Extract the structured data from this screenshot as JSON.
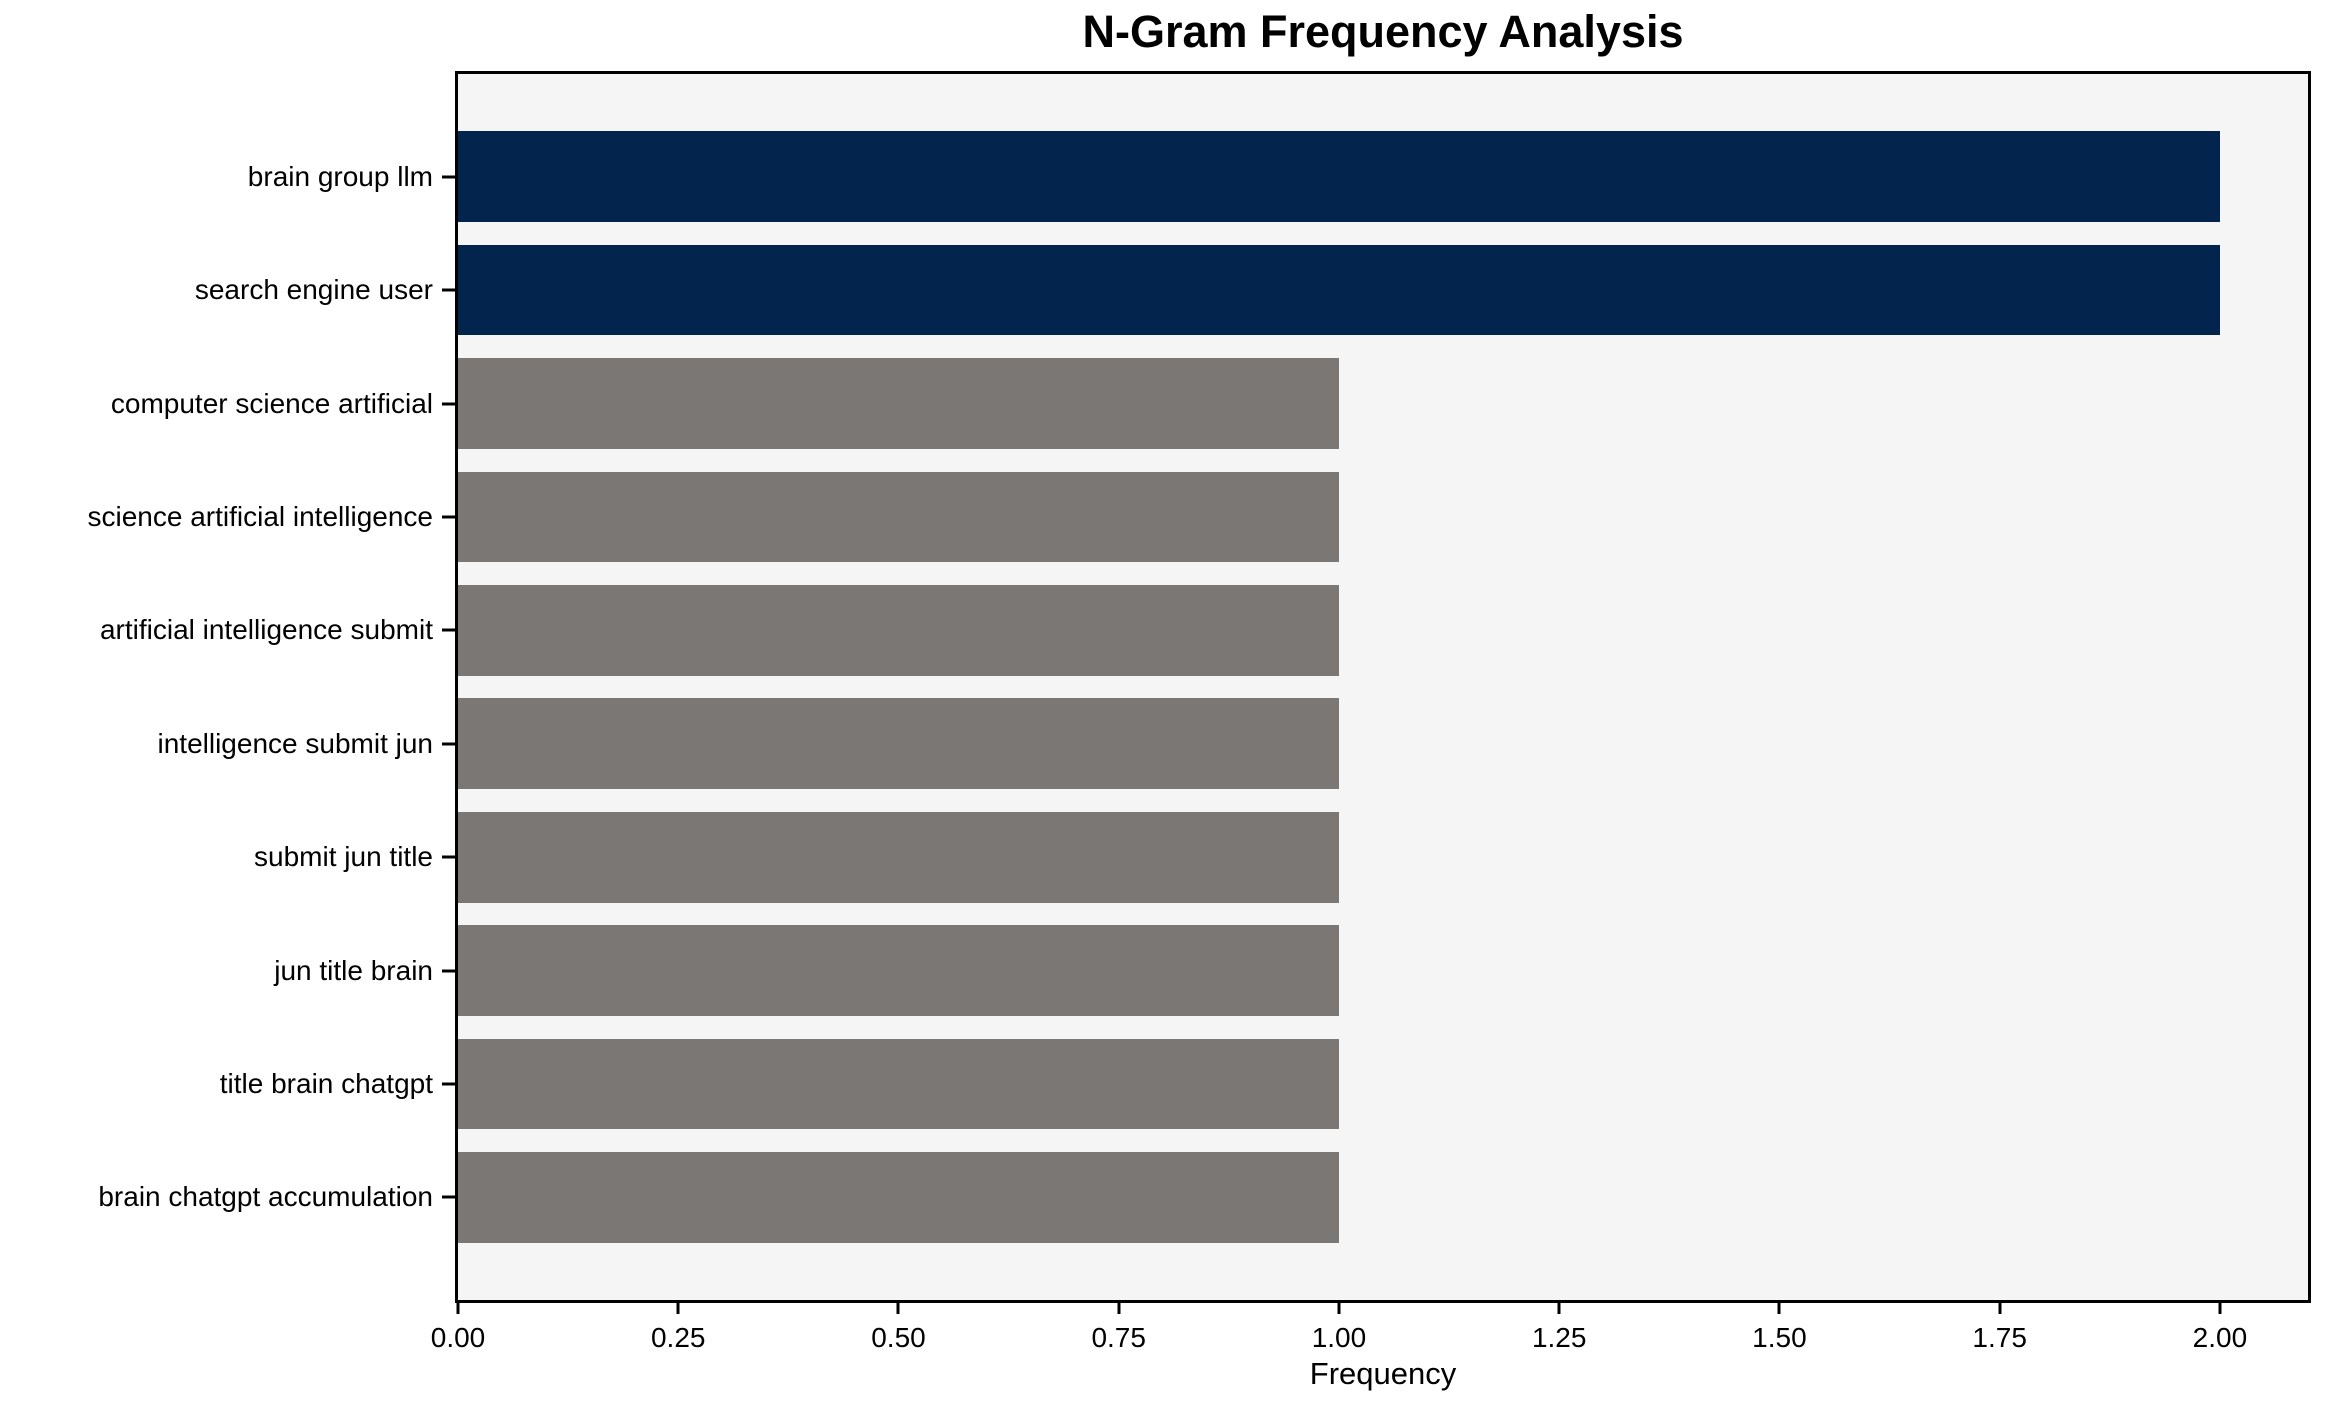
{
  "chart_data": {
    "type": "bar",
    "orientation": "horizontal",
    "title": "N-Gram Frequency Analysis",
    "xlabel": "Frequency",
    "ylabel": "",
    "categories": [
      "brain group llm",
      "search engine user",
      "computer science artificial",
      "science artificial intelligence",
      "artificial intelligence submit",
      "intelligence submit jun",
      "submit jun title",
      "jun title brain",
      "title brain chatgpt",
      "brain chatgpt accumulation"
    ],
    "values": [
      2,
      2,
      1,
      1,
      1,
      1,
      1,
      1,
      1,
      1
    ],
    "bar_colors": [
      "#03244c",
      "#03244c",
      "#7a7774",
      "#7a7774",
      "#7a7774",
      "#7a7774",
      "#7a7774",
      "#7a7774",
      "#7a7774",
      "#7a7774"
    ],
    "xlim": [
      0,
      2.1
    ],
    "xticks": [
      0,
      0.25,
      0.5,
      0.75,
      1.0,
      1.25,
      1.5,
      1.75,
      2.0
    ],
    "xtick_labels": [
      "0.00",
      "0.25",
      "0.50",
      "0.75",
      "1.00",
      "1.25",
      "1.50",
      "1.75",
      "2.00"
    ],
    "grid": false,
    "legend_position": "none",
    "colors": {
      "highlight": "#03244c",
      "normal": "#7a7774",
      "plot_background": "#f6f5f6",
      "figure_background": "#ffffff",
      "frame": "#000000",
      "text": "#000000"
    }
  }
}
